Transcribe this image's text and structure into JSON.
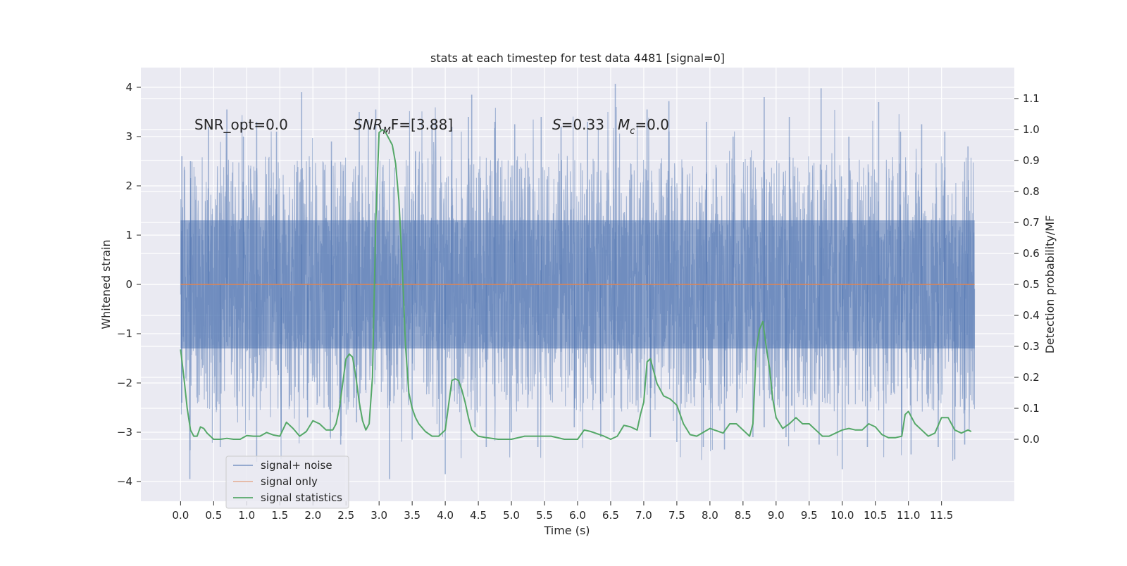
{
  "chart_data": {
    "type": "line",
    "title": "stats at each timestep for test data 4481 [signal=0]",
    "xlabel": "Time (s)",
    "ylabel": "Whitened strain",
    "ylabel_right": "Detection probability/MF",
    "xlim": [
      -0.6,
      12.6
    ],
    "ylim": [
      -4.4,
      4.4
    ],
    "ylim_right": [
      -0.2,
      1.2
    ],
    "x_ticks": [
      0.0,
      0.5,
      1.0,
      1.5,
      2.0,
      2.5,
      3.0,
      3.5,
      4.0,
      4.5,
      5.0,
      5.5,
      6.0,
      6.5,
      7.0,
      7.5,
      8.0,
      8.5,
      9.0,
      9.5,
      10.0,
      10.5,
      11.0,
      11.5
    ],
    "x_tick_labels": [
      "0.0",
      "0.5",
      "1.0",
      "1.5",
      "2.0",
      "2.5",
      "3.0",
      "3.5",
      "4.0",
      "4.5",
      "5.0",
      "5.5",
      "6.0",
      "6.5",
      "7.0",
      "7.5",
      "8.0",
      "8.5",
      "9.0",
      "9.5",
      "10.0",
      "10.5",
      "11.0",
      "11.5"
    ],
    "y_ticks": [
      -4,
      -3,
      -2,
      -1,
      0,
      1,
      2,
      3,
      4
    ],
    "y_tick_labels": [
      "−4",
      "−3",
      "−2",
      "−1",
      "0",
      "1",
      "2",
      "3",
      "4"
    ],
    "y_ticks_right": [
      0.0,
      0.1,
      0.2,
      0.3,
      0.4,
      0.5,
      0.6,
      0.7,
      0.8,
      0.9,
      1.0,
      1.1
    ],
    "y_tick_labels_right": [
      "0.0",
      "0.1",
      "0.2",
      "0.3",
      "0.4",
      "0.5",
      "0.6",
      "0.7",
      "0.8",
      "0.9",
      "1.0",
      "1.1"
    ],
    "grid": true,
    "legend_position": "lower-left",
    "annotations": {
      "snr_opt": "SNR_opt=0.0",
      "snr_mf_main": "SNR",
      "snr_mf_sub": "M",
      "snr_mf_rest": "F=[3.88]",
      "s_main": "S",
      "s_rest": "=0.33",
      "mc_main": "M",
      "mc_sub": "c",
      "mc_rest": "=0.0"
    },
    "series": [
      {
        "name": "signal+ noise",
        "axis": "left",
        "color": "#4c72b0",
        "opacity": 0.5,
        "x_range": [
          0.0,
          12.0
        ],
        "bulk_band": [
          -1.3,
          1.3
        ],
        "peaks_up": [
          [
            0.02,
            2.6
          ],
          [
            0.15,
            2.5
          ],
          [
            0.42,
            3.2
          ],
          [
            0.7,
            3.55
          ],
          [
            0.95,
            3.0
          ],
          [
            1.15,
            3.3
          ],
          [
            1.45,
            3.1
          ],
          [
            1.83,
            3.9
          ],
          [
            2.28,
            2.9
          ],
          [
            2.7,
            3.5
          ],
          [
            2.95,
            3.55
          ],
          [
            3.55,
            2.7
          ],
          [
            3.8,
            3.3
          ],
          [
            4.1,
            3.2
          ],
          [
            4.35,
            3.4
          ],
          [
            4.4,
            3.85
          ],
          [
            4.75,
            3.3
          ],
          [
            5.05,
            3.25
          ],
          [
            5.45,
            3.4
          ],
          [
            5.75,
            3.2
          ],
          [
            6.15,
            3.3
          ],
          [
            6.57,
            4.07
          ],
          [
            7.05,
            3.55
          ],
          [
            7.38,
            3.72
          ],
          [
            7.95,
            3.3
          ],
          [
            8.35,
            3.0
          ],
          [
            8.82,
            3.8
          ],
          [
            9.2,
            3.4
          ],
          [
            9.68,
            3.98
          ],
          [
            10.1,
            3.0
          ],
          [
            10.55,
            3.7
          ],
          [
            10.88,
            3.1
          ],
          [
            11.2,
            3.25
          ],
          [
            11.55,
            3.1
          ],
          [
            11.9,
            2.8
          ]
        ],
        "peaks_down": [
          [
            0.02,
            -2.4
          ],
          [
            0.14,
            -3.95
          ],
          [
            0.6,
            -3.3
          ],
          [
            1.15,
            -3.6
          ],
          [
            1.52,
            -3.0
          ],
          [
            1.92,
            -2.7
          ],
          [
            2.42,
            -3.25
          ],
          [
            2.66,
            -2.8
          ],
          [
            3.16,
            -3.95
          ],
          [
            3.5,
            -3.15
          ],
          [
            3.91,
            -3.05
          ],
          [
            4.0,
            -3.85
          ],
          [
            4.45,
            -2.9
          ],
          [
            4.62,
            -3.3
          ],
          [
            5.0,
            -3.0
          ],
          [
            5.4,
            -3.3
          ],
          [
            5.95,
            -2.9
          ],
          [
            6.35,
            -3.1
          ],
          [
            6.55,
            -3.0
          ],
          [
            7.1,
            -3.1
          ],
          [
            7.5,
            -3.2
          ],
          [
            7.9,
            -3.3
          ],
          [
            8.22,
            -3.35
          ],
          [
            8.65,
            -3.1
          ],
          [
            8.82,
            -2.9
          ],
          [
            9.15,
            -3.1
          ],
          [
            9.65,
            -3.25
          ],
          [
            10.0,
            -3.75
          ],
          [
            10.38,
            -3.3
          ],
          [
            10.9,
            -3.0
          ],
          [
            11.04,
            -3.45
          ],
          [
            11.45,
            -3.3
          ],
          [
            11.7,
            -3.55
          ],
          [
            11.85,
            -3.25
          ]
        ]
      },
      {
        "name": "signal only",
        "axis": "left",
        "color": "#dd8452",
        "x": [
          0.0,
          12.0
        ],
        "y": [
          0.0,
          0.0
        ]
      },
      {
        "name": "signal statistics",
        "axis": "right",
        "color": "#55a868",
        "x": [
          0.0,
          0.05,
          0.1,
          0.15,
          0.2,
          0.25,
          0.3,
          0.35,
          0.4,
          0.5,
          0.6,
          0.7,
          0.8,
          0.9,
          1.0,
          1.1,
          1.2,
          1.3,
          1.4,
          1.5,
          1.6,
          1.7,
          1.8,
          1.9,
          2.0,
          2.1,
          2.2,
          2.3,
          2.35,
          2.4,
          2.5,
          2.55,
          2.6,
          2.65,
          2.7,
          2.75,
          2.8,
          2.85,
          2.9,
          2.95,
          3.0,
          3.05,
          3.1,
          3.15,
          3.2,
          3.25,
          3.3,
          3.35,
          3.4,
          3.45,
          3.5,
          3.55,
          3.6,
          3.7,
          3.8,
          3.9,
          4.0,
          4.1,
          4.15,
          4.2,
          4.25,
          4.3,
          4.35,
          4.4,
          4.5,
          4.6,
          4.8,
          5.0,
          5.2,
          5.4,
          5.6,
          5.8,
          6.0,
          6.1,
          6.2,
          6.4,
          6.5,
          6.6,
          6.7,
          6.8,
          6.9,
          6.95,
          7.0,
          7.05,
          7.1,
          7.2,
          7.3,
          7.4,
          7.5,
          7.6,
          7.7,
          7.8,
          8.0,
          8.2,
          8.3,
          8.4,
          8.5,
          8.6,
          8.65,
          8.7,
          8.75,
          8.8,
          8.85,
          8.9,
          8.95,
          9.0,
          9.1,
          9.2,
          9.3,
          9.4,
          9.5,
          9.6,
          9.7,
          9.8,
          9.9,
          10.0,
          10.1,
          10.2,
          10.3,
          10.4,
          10.5,
          10.6,
          10.7,
          10.8,
          10.9,
          10.95,
          11.0,
          11.05,
          11.1,
          11.2,
          11.3,
          11.4,
          11.5,
          11.6,
          11.7,
          11.8,
          11.9,
          11.95
        ],
        "y": [
          0.29,
          0.2,
          0.1,
          0.03,
          0.01,
          0.01,
          0.04,
          0.035,
          0.02,
          0.0,
          0.0,
          0.003,
          0.0,
          0.0,
          0.012,
          0.01,
          0.01,
          0.022,
          0.014,
          0.01,
          0.055,
          0.035,
          0.01,
          0.025,
          0.06,
          0.05,
          0.03,
          0.03,
          0.05,
          0.1,
          0.26,
          0.275,
          0.265,
          0.2,
          0.12,
          0.06,
          0.03,
          0.05,
          0.2,
          0.7,
          0.99,
          1.0,
          0.99,
          0.97,
          0.95,
          0.89,
          0.77,
          0.56,
          0.3,
          0.15,
          0.1,
          0.07,
          0.05,
          0.025,
          0.01,
          0.01,
          0.03,
          0.19,
          0.195,
          0.19,
          0.16,
          0.12,
          0.07,
          0.03,
          0.01,
          0.006,
          0.0,
          0.0,
          0.01,
          0.01,
          0.01,
          0.0,
          0.0,
          0.03,
          0.025,
          0.01,
          0.0,
          0.01,
          0.045,
          0.04,
          0.03,
          0.08,
          0.12,
          0.25,
          0.26,
          0.18,
          0.14,
          0.13,
          0.11,
          0.05,
          0.015,
          0.01,
          0.035,
          0.02,
          0.05,
          0.05,
          0.03,
          0.01,
          0.05,
          0.29,
          0.355,
          0.38,
          0.3,
          0.23,
          0.13,
          0.07,
          0.035,
          0.05,
          0.07,
          0.05,
          0.05,
          0.03,
          0.01,
          0.01,
          0.02,
          0.03,
          0.035,
          0.03,
          0.03,
          0.05,
          0.04,
          0.015,
          0.005,
          0.005,
          0.01,
          0.08,
          0.09,
          0.07,
          0.05,
          0.03,
          0.01,
          0.02,
          0.07,
          0.07,
          0.03,
          0.02,
          0.03,
          0.025
        ]
      }
    ]
  }
}
